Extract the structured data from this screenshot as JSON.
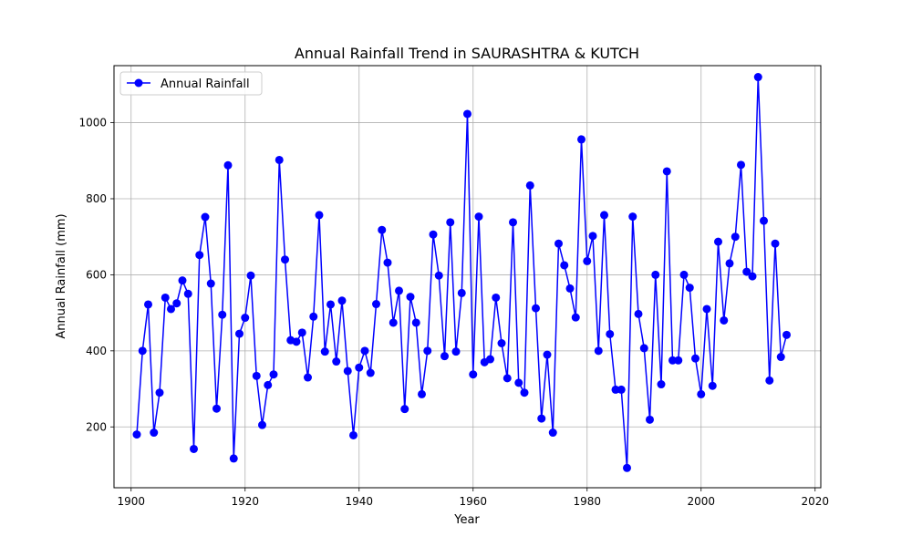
{
  "chart_data": {
    "type": "line",
    "title": "Annual Rainfall Trend in SAURASHTRA & KUTCH",
    "xlabel": "Year",
    "ylabel": "Annual Rainfall (mm)",
    "xlim": [
      1897,
      2021
    ],
    "ylim": [
      40,
      1150
    ],
    "x_ticks": [
      1900,
      1920,
      1940,
      1960,
      1980,
      2000,
      2020
    ],
    "y_ticks": [
      200,
      400,
      600,
      800,
      1000
    ],
    "grid": true,
    "legend_position": "upper-left",
    "series": [
      {
        "name": "Annual Rainfall",
        "color": "#0000ff",
        "marker": "circle",
        "x": [
          1901,
          1902,
          1903,
          1904,
          1905,
          1906,
          1907,
          1908,
          1909,
          1910,
          1911,
          1912,
          1913,
          1914,
          1915,
          1916,
          1917,
          1918,
          1919,
          1920,
          1921,
          1922,
          1923,
          1924,
          1925,
          1926,
          1927,
          1928,
          1929,
          1930,
          1931,
          1932,
          1933,
          1934,
          1935,
          1936,
          1937,
          1938,
          1939,
          1940,
          1941,
          1942,
          1943,
          1944,
          1945,
          1946,
          1947,
          1948,
          1949,
          1950,
          1951,
          1952,
          1953,
          1954,
          1955,
          1956,
          1957,
          1958,
          1959,
          1960,
          1961,
          1962,
          1963,
          1964,
          1965,
          1966,
          1967,
          1968,
          1969,
          1970,
          1971,
          1972,
          1973,
          1974,
          1975,
          1976,
          1977,
          1978,
          1979,
          1980,
          1981,
          1982,
          1983,
          1984,
          1985,
          1986,
          1987,
          1988,
          1989,
          1990,
          1991,
          1992,
          1993,
          1994,
          1995,
          1996,
          1997,
          1998,
          1999,
          2000,
          2001,
          2002,
          2003,
          2004,
          2005,
          2006,
          2007,
          2008,
          2009,
          2010,
          2011,
          2012,
          2013,
          2014,
          2015
        ],
        "y": [
          180,
          400,
          522,
          185,
          290,
          540,
          510,
          525,
          585,
          550,
          142,
          652,
          752,
          577,
          248,
          495,
          888,
          117,
          445,
          487,
          598,
          334,
          205,
          310,
          338,
          902,
          640,
          428,
          424,
          448,
          330,
          490,
          757,
          398,
          522,
          372,
          532,
          347,
          178,
          356,
          400,
          342,
          523,
          718,
          632,
          474,
          558,
          247,
          542,
          474,
          286,
          400,
          706,
          598,
          386,
          738,
          398,
          552,
          1023,
          338,
          753,
          370,
          378,
          540,
          420,
          328,
          738,
          316,
          290,
          835,
          512,
          222,
          390,
          185,
          682,
          625,
          564,
          488,
          956,
          636,
          702,
          400,
          757,
          444,
          298,
          298,
          92,
          753,
          497,
          407,
          219,
          600,
          312,
          872,
          375,
          375,
          600,
          566,
          380,
          286,
          510,
          308,
          687,
          480,
          630,
          700,
          889,
          608,
          596,
          1120,
          742,
          322,
          682,
          384,
          442
        ]
      }
    ]
  }
}
